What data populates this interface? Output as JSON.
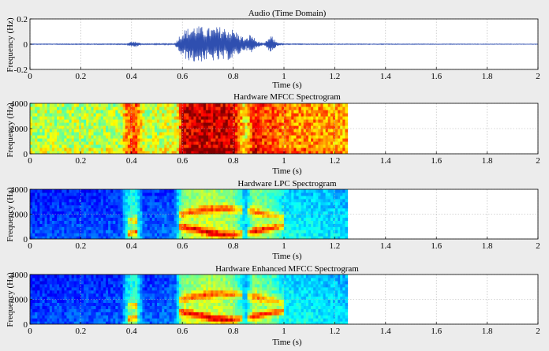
{
  "colors": {
    "figure_bg": "#ececec",
    "axes_bg": "#ffffff",
    "grid": "#b0b0b0",
    "waveform": "#2f4fb0",
    "spectrogram_cmap": "jet"
  },
  "chart_data": [
    {
      "type": "line",
      "title": "Audio (Time Domain)",
      "xlabel": "Time (s)",
      "ylabel": "Frequency (Hz)",
      "xlim": [
        0,
        2
      ],
      "ylim": [
        -0.2,
        0.2
      ],
      "grid": true,
      "xticks": [
        "0",
        "0.2",
        "0.4",
        "0.6",
        "0.8",
        "1",
        "1.2",
        "1.4",
        "1.6",
        "1.8",
        "2"
      ],
      "yticks": [
        "-0.2",
        "0",
        "0.2"
      ],
      "series": [
        {
          "envelope_time": [
            0,
            0.38,
            0.41,
            0.44,
            0.57,
            0.6,
            0.65,
            0.7,
            0.75,
            0.8,
            0.85,
            0.87,
            0.89,
            0.92,
            0.95,
            0.97,
            1.0,
            1.25,
            2
          ],
          "envelope_amplitude": [
            0.003,
            0.004,
            0.03,
            0.004,
            0.006,
            0.11,
            0.15,
            0.13,
            0.14,
            0.12,
            0.04,
            0.09,
            0.03,
            0.005,
            0.07,
            0.02,
            0.004,
            0.003,
            0.002
          ]
        }
      ]
    },
    {
      "type": "heatmap",
      "title": "Hardware MFCC Spectrogram",
      "xlabel": "Time (s)",
      "ylabel": "Frequency (Hz)",
      "xlim": [
        0,
        2
      ],
      "ylim": [
        0,
        4000
      ],
      "grid": true,
      "xticks": [
        "0",
        "0.2",
        "0.4",
        "0.6",
        "0.8",
        "1",
        "1.2",
        "1.4",
        "1.6",
        "1.8",
        "2"
      ],
      "yticks": [
        "0",
        "2000",
        "4000"
      ],
      "data_extent_time": [
        0,
        1.25
      ],
      "intensity_by_time": [
        [
          0,
          0.55
        ],
        [
          0.36,
          0.55
        ],
        [
          0.38,
          0.75
        ],
        [
          0.42,
          0.8
        ],
        [
          0.45,
          0.55
        ],
        [
          0.58,
          0.6
        ],
        [
          0.6,
          0.9
        ],
        [
          0.7,
          0.92
        ],
        [
          0.8,
          0.9
        ],
        [
          0.85,
          0.6
        ],
        [
          0.88,
          0.85
        ],
        [
          0.95,
          0.8
        ],
        [
          1.0,
          0.75
        ],
        [
          1.25,
          0.7
        ]
      ]
    },
    {
      "type": "heatmap",
      "title": "Hardware LPC Spectrogram",
      "xlabel": "Time (s)",
      "ylabel": "Frequency (Hz)",
      "xlim": [
        0,
        2
      ],
      "ylim": [
        0,
        4000
      ],
      "grid": true,
      "xticks": [
        "0",
        "0.2",
        "0.4",
        "0.6",
        "0.8",
        "1",
        "1.2",
        "1.4",
        "1.6",
        "1.8",
        "2"
      ],
      "yticks": [
        "0",
        "2000",
        "4000"
      ],
      "data_extent_time": [
        0,
        1.25
      ],
      "intensity_by_time": [
        [
          0,
          0.2
        ],
        [
          0.36,
          0.22
        ],
        [
          0.38,
          0.4
        ],
        [
          0.42,
          0.45
        ],
        [
          0.45,
          0.22
        ],
        [
          0.57,
          0.25
        ],
        [
          0.6,
          0.55
        ],
        [
          0.7,
          0.6
        ],
        [
          0.8,
          0.55
        ],
        [
          0.85,
          0.35
        ],
        [
          0.88,
          0.55
        ],
        [
          0.95,
          0.5
        ],
        [
          1.0,
          0.4
        ],
        [
          1.25,
          0.35
        ]
      ]
    },
    {
      "type": "heatmap",
      "title": "Hardware Enhanced MFCC Spectrogram",
      "xlabel": "Time (s)",
      "ylabel": "Frequency (Hz)",
      "xlim": [
        0,
        2
      ],
      "ylim": [
        0,
        4000
      ],
      "grid": true,
      "xticks": [
        "0",
        "0.2",
        "0.4",
        "0.6",
        "0.8",
        "1",
        "1.2",
        "1.4",
        "1.6",
        "1.8",
        "2"
      ],
      "yticks": [
        "0",
        "2000",
        "4000"
      ],
      "data_extent_time": [
        0,
        1.25
      ],
      "intensity_by_time": [
        [
          0,
          0.2
        ],
        [
          0.36,
          0.22
        ],
        [
          0.38,
          0.4
        ],
        [
          0.42,
          0.45
        ],
        [
          0.45,
          0.22
        ],
        [
          0.57,
          0.25
        ],
        [
          0.6,
          0.55
        ],
        [
          0.7,
          0.6
        ],
        [
          0.8,
          0.55
        ],
        [
          0.85,
          0.35
        ],
        [
          0.88,
          0.55
        ],
        [
          0.95,
          0.5
        ],
        [
          1.0,
          0.4
        ],
        [
          1.25,
          0.35
        ]
      ]
    }
  ]
}
